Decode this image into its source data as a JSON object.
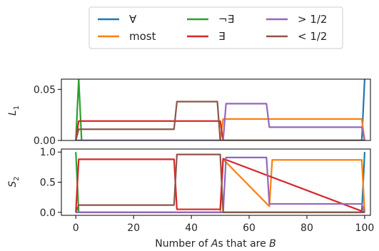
{
  "chart_data": [
    {
      "type": "line",
      "panel": "top",
      "ylabel_base": "L",
      "ylabel_sub": "1",
      "xlim": [
        -5,
        102
      ],
      "ylim": [
        0.0,
        0.06
      ],
      "yticks": [
        0.0,
        0.05
      ],
      "ytick_labels": [
        "0.00",
        "0.05"
      ],
      "grid": false,
      "series": [
        {
          "name": "∀",
          "color": "#1f77b4",
          "x": [
            0,
            98,
            99,
            100
          ],
          "y": [
            0,
            0,
            0,
            0.06
          ]
        },
        {
          "name": "most",
          "color": "#ff7f0e",
          "x": [
            0,
            50,
            51,
            99,
            100
          ],
          "y": [
            0,
            0,
            0.021,
            0.021,
            0
          ]
        },
        {
          "name": "¬∃",
          "color": "#2ca02c",
          "x": [
            0,
            1,
            2,
            100
          ],
          "y": [
            0,
            0.06,
            0,
            0
          ]
        },
        {
          "name": "∃",
          "color": "#d62728",
          "x": [
            0,
            1,
            50,
            51,
            100
          ],
          "y": [
            0,
            0.019,
            0.019,
            0,
            0
          ]
        },
        {
          "name": "> 1/2",
          "color": "#9467bd",
          "x": [
            0,
            51,
            52,
            66,
            67,
            99,
            100
          ],
          "y": [
            0,
            0,
            0.036,
            0.036,
            0.013,
            0.013,
            0
          ]
        },
        {
          "name": "< 1/2",
          "color": "#8c564b",
          "x": [
            0,
            1,
            34,
            35,
            49,
            50,
            100
          ],
          "y": [
            0,
            0.011,
            0.011,
            0.038,
            0.038,
            0,
            0
          ]
        }
      ]
    },
    {
      "type": "line",
      "panel": "bottom",
      "ylabel_base": "S",
      "ylabel_sub": "2",
      "xlabel_parts": [
        "Number of ",
        "A",
        "s that are ",
        "B"
      ],
      "xlim": [
        -5,
        102
      ],
      "ylim": [
        -0.05,
        1.05
      ],
      "yticks": [
        0.0,
        0.5,
        1.0
      ],
      "ytick_labels": [
        "0.0",
        "0.5",
        "1.0"
      ],
      "xticks": [
        0,
        20,
        40,
        60,
        80,
        100
      ],
      "xtick_labels": [
        "0",
        "20",
        "40",
        "60",
        "80",
        "100"
      ],
      "grid": false,
      "series": [
        {
          "name": "∀",
          "color": "#1f77b4",
          "x": [
            0,
            99,
            100
          ],
          "y": [
            0,
            0,
            1.0
          ]
        },
        {
          "name": "most",
          "color": "#ff7f0e",
          "x": [
            0,
            50,
            51,
            67,
            68,
            99,
            100
          ],
          "y": [
            0,
            0,
            0.88,
            0.1,
            0.87,
            0.87,
            0
          ]
        },
        {
          "name": "¬∃",
          "color": "#2ca02c",
          "x": [
            0,
            1,
            100
          ],
          "y": [
            1.0,
            0,
            0
          ]
        },
        {
          "name": "∃",
          "color": "#d62728",
          "x": [
            0,
            1,
            34,
            35,
            50,
            51,
            99,
            100
          ],
          "y": [
            0,
            0.88,
            0.88,
            0.05,
            0.05,
            0.89,
            0.02,
            0
          ]
        },
        {
          "name": "> 1/2",
          "color": "#9467bd",
          "x": [
            0,
            51,
            52,
            66,
            67,
            99,
            100
          ],
          "y": [
            0,
            0,
            0.91,
            0.91,
            0.14,
            0.14,
            0
          ]
        },
        {
          "name": "< 1/2",
          "color": "#8c564b",
          "x": [
            0,
            1,
            34,
            35,
            50,
            51,
            100
          ],
          "y": [
            0,
            0.12,
            0.12,
            0.96,
            0.96,
            0,
            0
          ]
        }
      ]
    }
  ],
  "legend": {
    "placement": "top-center",
    "columns": 3,
    "entries": [
      {
        "label": "∀",
        "color": "#1f77b4"
      },
      {
        "label": "most",
        "color": "#ff7f0e"
      },
      {
        "label": "¬∃",
        "color": "#2ca02c"
      },
      {
        "label": "∃",
        "color": "#d62728"
      },
      {
        "label": "> 1/2",
        "color": "#9467bd"
      },
      {
        "label": "< 1/2",
        "color": "#8c564b"
      }
    ]
  }
}
